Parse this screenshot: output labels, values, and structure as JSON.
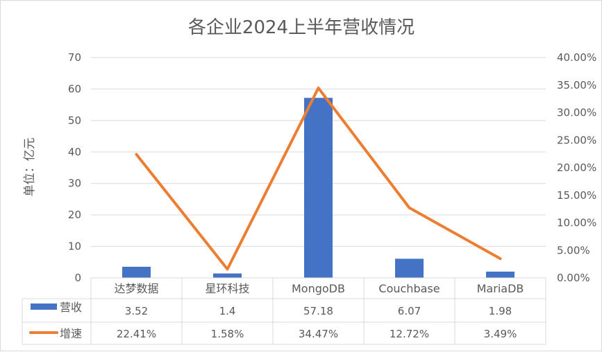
{
  "chart_data": {
    "type": "bar",
    "title": "各企业2024上半年营收情况",
    "ylabel": "单位：亿元",
    "categories": [
      "达梦数据",
      "星环科技",
      "MongoDB",
      "Couchbase",
      "MariaDB"
    ],
    "ylim": [
      0,
      70
    ],
    "yticks": [
      "0",
      "10",
      "20",
      "30",
      "40",
      "50",
      "60",
      "70"
    ],
    "y2lim": [
      0,
      40
    ],
    "y2ticks": [
      "0.00%",
      "5.00%",
      "10.00%",
      "15.00%",
      "20.00%",
      "25.00%",
      "30.00%",
      "35.00%",
      "40.00%"
    ],
    "gridlines": true,
    "legend": "data-table",
    "series": [
      {
        "name": "营收",
        "type": "bar",
        "axis": "left",
        "color": "#4472c4",
        "values": [
          3.52,
          1.4,
          57.18,
          6.07,
          1.98
        ],
        "labels": [
          "3.52",
          "1.4",
          "57.18",
          "6.07",
          "1.98"
        ]
      },
      {
        "name": "增速",
        "type": "line",
        "axis": "right",
        "color": "#ed7d31",
        "values": [
          22.41,
          1.58,
          34.47,
          12.72,
          3.49
        ],
        "labels": [
          "22.41%",
          "1.58%",
          "34.47%",
          "12.72%",
          "3.49%"
        ]
      }
    ]
  }
}
